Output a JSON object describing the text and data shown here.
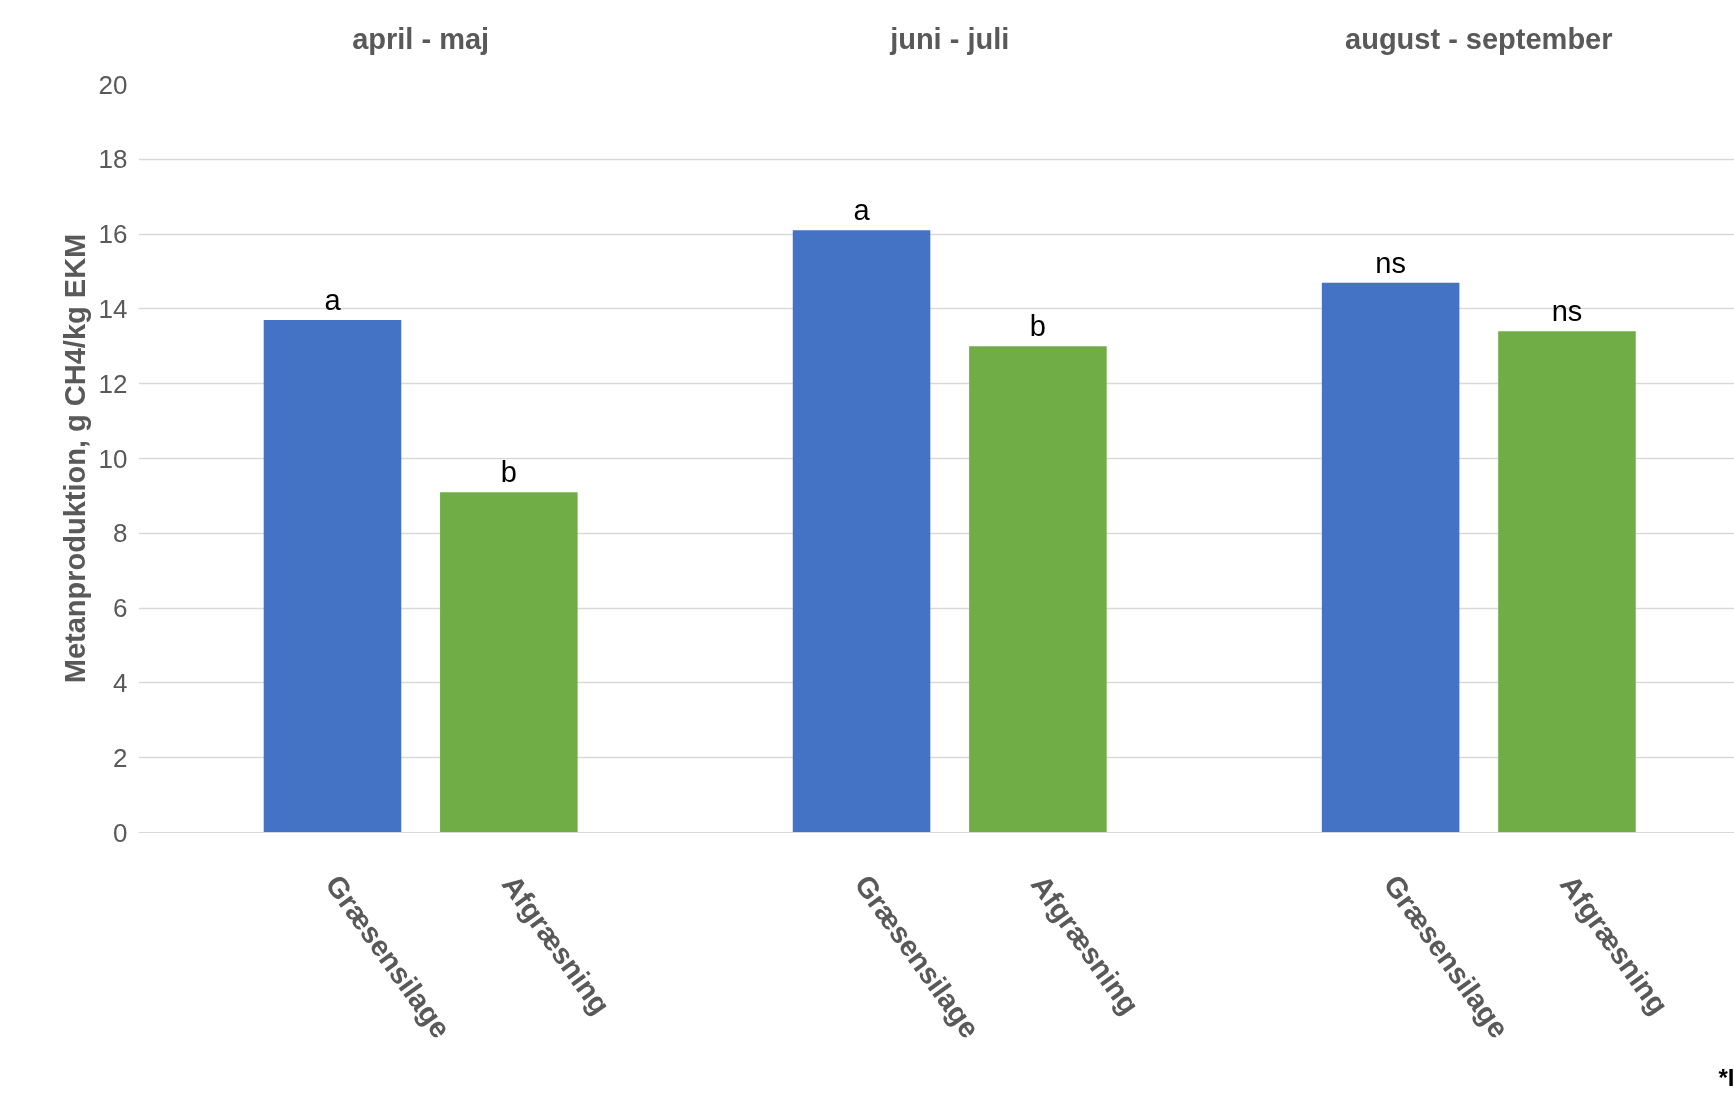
{
  "chart_data": {
    "type": "bar",
    "ylabel": "Metanproduktion, g CH4/kg EKM",
    "categories": [
      "Græsensilage",
      "Afgræsning",
      null,
      "Græsensilage",
      "Afgræsning",
      null,
      "Græsensilage",
      "Afgræsning"
    ],
    "values": [
      13.7,
      9.1,
      null,
      16.1,
      13.0,
      null,
      14.7,
      13.4
    ],
    "colors": [
      "#4472c4",
      "#70ad47",
      null,
      "#4472c4",
      "#70ad47",
      null,
      "#4472c4",
      "#70ad47"
    ],
    "value_labels": [
      "a",
      "b",
      null,
      "a",
      "b",
      null,
      "ns",
      "ns"
    ],
    "ylim": [
      0,
      20
    ],
    "yticks": [
      0,
      2,
      4,
      6,
      8,
      10,
      12,
      14,
      16,
      18,
      20
    ],
    "grid": "y",
    "annotations": [
      "april - maj",
      "juni - juli",
      "august - september",
      "*I"
    ]
  }
}
